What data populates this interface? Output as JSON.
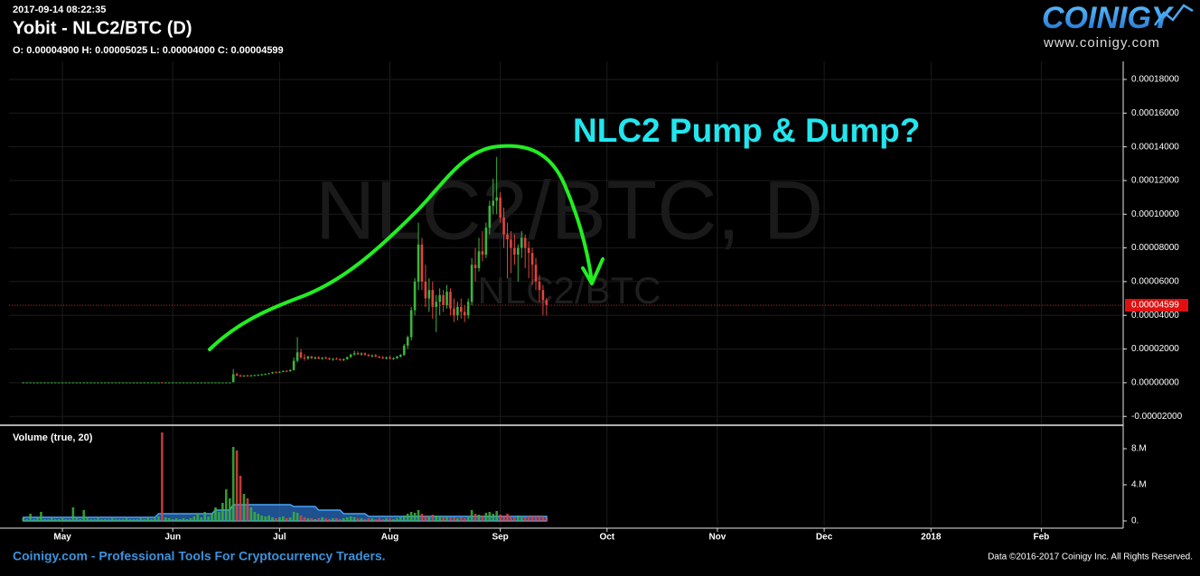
{
  "header": {
    "timestamp": "2017-09-14 08:22:35",
    "title": "Yobit - NLC2/BTC (D)",
    "ohlc": "O: 0.00004900 H: 0.00005025 L: 0.00004000 C: 0.00004599"
  },
  "logo": {
    "name": "COINIGY",
    "url": "www.coinigy.com"
  },
  "footer": {
    "tagline": "Coinigy.com - Professional Tools For Cryptocurrency Traders.",
    "copyright": "Data ©2016-2017 Coinigy Inc. All Rights Reserved."
  },
  "chart_data": [
    {
      "type": "candlestick",
      "watermark": "NLC2/BTC, D",
      "watermark_sub": "NLC2/BTC",
      "annotation": "NLC2 Pump & Dump?",
      "up_color": "#3cb43c",
      "down_color": "#e0443e",
      "grid": true,
      "xlim": [
        106,
        419
      ],
      "ylim": [
        -2.47e-05,
        0.0001907
      ],
      "yticks": [
        {
          "value": -2e-05,
          "label": "-0.00002000"
        },
        {
          "value": 0,
          "label": "0.00000000"
        },
        {
          "value": 2e-05,
          "label": "0.00002000"
        },
        {
          "value": 4e-05,
          "label": "0.00004000"
        },
        {
          "value": 6e-05,
          "label": "0.00006000"
        },
        {
          "value": 8e-05,
          "label": "0.00008000"
        },
        {
          "value": 0.0001,
          "label": "0.00010000"
        },
        {
          "value": 0.00012,
          "label": "0.00012000"
        },
        {
          "value": 0.00014,
          "label": "0.00014000"
        },
        {
          "value": 0.00016,
          "label": "0.00016000"
        },
        {
          "value": 0.00018,
          "label": "0.00018000"
        }
      ],
      "last_price": {
        "value": 4.599e-05,
        "label": "0.00004599"
      },
      "x": [
        110,
        111,
        112,
        113,
        114,
        115,
        116,
        117,
        118,
        119,
        120,
        121,
        122,
        123,
        124,
        125,
        126,
        127,
        128,
        129,
        130,
        131,
        132,
        133,
        134,
        135,
        136,
        137,
        138,
        139,
        140,
        141,
        142,
        143,
        144,
        145,
        146,
        147,
        148,
        149,
        150,
        151,
        152,
        153,
        154,
        155,
        156,
        157,
        158,
        159,
        160,
        161,
        162,
        163,
        164,
        165,
        166,
        167,
        168,
        169,
        170,
        171,
        172,
        173,
        174,
        175,
        176,
        177,
        178,
        179,
        180,
        181,
        182,
        183,
        184,
        185,
        186,
        187,
        188,
        189,
        190,
        191,
        192,
        193,
        194,
        195,
        196,
        197,
        198,
        199,
        200,
        201,
        202,
        203,
        204,
        205,
        206,
        207,
        208,
        209,
        210,
        211,
        212,
        213,
        214,
        215,
        216,
        217,
        218,
        219,
        220,
        221,
        222,
        223,
        224,
        225,
        226,
        227,
        228,
        229,
        230,
        231,
        232,
        233,
        234,
        235,
        236,
        237,
        238,
        239,
        240,
        241,
        242,
        243,
        244,
        245,
        246,
        247,
        248,
        249,
        250,
        251,
        252,
        253,
        254,
        255,
        256,
        257
      ],
      "open": [
        2e-07,
        2e-07,
        2e-07,
        2e-07,
        2e-07,
        2e-07,
        2e-07,
        2e-07,
        2e-07,
        2e-07,
        2e-07,
        2e-07,
        2e-07,
        2e-07,
        2e-07,
        2e-07,
        2e-07,
        2e-07,
        2e-07,
        2e-07,
        2e-07,
        2e-07,
        2e-07,
        2e-07,
        2e-07,
        2e-07,
        2e-07,
        2e-07,
        2e-07,
        2e-07,
        2e-07,
        2e-07,
        2e-07,
        2e-07,
        2e-07,
        2e-07,
        2e-07,
        2e-07,
        2e-07,
        2.5e-07,
        2e-07,
        2e-07,
        2e-07,
        2e-07,
        2e-07,
        2e-07,
        2e-07,
        2e-07,
        2e-07,
        2e-07,
        2e-07,
        2e-07,
        2e-07,
        2e-07,
        2e-07,
        2e-07,
        2e-07,
        2e-07,
        2e-07,
        3e-07,
        5e-06,
        4.2e-06,
        4e-06,
        4.2e-06,
        4e-06,
        4.3e-06,
        4.5e-06,
        4.6e-06,
        5e-06,
        5.2e-06,
        5.6e-06,
        6.2e-06,
        6e-06,
        6.5e-06,
        7e-06,
        6.9e-06,
        7.5e-06,
        1.3e-05,
        1.8e-05,
        1.5e-05,
        1.45e-05,
        1.55e-05,
        1.46e-05,
        1.5e-05,
        1.42e-05,
        1.48e-05,
        1.44e-05,
        1.38e-05,
        1.42e-05,
        1.39e-05,
        1.35e-05,
        1.4e-05,
        1.52e-05,
        1.68e-05,
        1.75e-05,
        1.68e-05,
        1.74e-05,
        1.64e-05,
        1.58e-05,
        1.62e-05,
        1.54e-05,
        1.5e-05,
        1.44e-05,
        1.5e-05,
        1.42e-05,
        1.46e-05,
        1.55e-05,
        1.65e-05,
        2.2e-05,
        2.7e-05,
        4.3e-05,
        6e-05,
        8.2e-05,
        6e-05,
        5e-05,
        5.5e-05,
        4.5e-05,
        4.8e-05,
        5.2e-05,
        4.6e-05,
        5.4e-05,
        4.4e-05,
        4e-05,
        4.5e-05,
        4.2e-05,
        4e-05,
        4.8e-05,
        7e-05,
        6.8e-05,
        7.8e-05,
        7.6e-05,
        9.2e-05,
        0.000105,
        0.000108,
        0.00011,
        9.8e-05,
        8.8e-05,
        8.5e-05,
        8e-05,
        7.6e-05,
        8e-05,
        8.6e-05,
        8e-05,
        7.7e-05,
        7e-05,
        6e-05,
        5.5e-05,
        4.9e-05
      ],
      "high": [
        2e-07,
        2e-07,
        2e-07,
        2e-07,
        2e-07,
        2e-07,
        2e-07,
        2e-07,
        2e-07,
        2e-07,
        2e-07,
        2e-07,
        2e-07,
        2e-07,
        2e-07,
        2e-07,
        2e-07,
        2e-07,
        2e-07,
        2e-07,
        2e-07,
        2e-07,
        2e-07,
        2e-07,
        2e-07,
        2e-07,
        2e-07,
        2e-07,
        2e-07,
        2e-07,
        2e-07,
        2e-07,
        2e-07,
        2e-07,
        2e-07,
        2e-07,
        2e-07,
        2e-07,
        2e-07,
        3e-07,
        2e-07,
        2e-07,
        2e-07,
        2e-07,
        2e-07,
        2e-07,
        2e-07,
        2e-07,
        2e-07,
        2e-07,
        2e-07,
        2e-07,
        2e-07,
        2e-07,
        2e-07,
        2e-07,
        2e-07,
        2e-07,
        2e-07,
        8e-06,
        6e-06,
        5e-06,
        4.5e-06,
        4.8e-06,
        4.6e-06,
        4.8e-06,
        5e-06,
        5.2e-06,
        5.5e-06,
        5.8e-06,
        6.5e-06,
        6.8e-06,
        6.8e-06,
        7.2e-06,
        7.5e-06,
        8e-06,
        1.5e-05,
        2.7e-05,
        2e-05,
        1.7e-05,
        1.6e-05,
        1.6e-05,
        1.55e-05,
        1.58e-05,
        1.52e-05,
        1.56e-05,
        1.5e-05,
        1.46e-05,
        1.5e-05,
        1.45e-05,
        1.44e-05,
        1.55e-05,
        1.7e-05,
        1.9e-05,
        1.85e-05,
        1.8e-05,
        1.8e-05,
        1.72e-05,
        1.68e-05,
        1.7e-05,
        1.6e-05,
        1.58e-05,
        1.55e-05,
        1.6e-05,
        1.5e-05,
        1.6e-05,
        1.7e-05,
        2.3e-05,
        2.8e-05,
        4.5e-05,
        6.2e-05,
        9.5e-05,
        8.6e-05,
        7e-05,
        6.2e-05,
        6e-05,
        5.2e-05,
        5.6e-05,
        5.5e-05,
        5.8e-05,
        5.6e-05,
        5e-05,
        4.8e-05,
        5e-05,
        4.6e-05,
        5e-05,
        7.4e-05,
        8e-05,
        8.6e-05,
        9e-05,
        9.5e-05,
        0.000108,
        0.000121,
        0.000134,
        0.000113,
        0.000104,
        9.5e-05,
        9e-05,
        8.8e-05,
        8.2e-05,
        9e-05,
        8.8e-05,
        8.4e-05,
        8e-05,
        7.4e-05,
        6.4e-05,
        5.8e-05,
        5.025e-05
      ],
      "low": [
        2e-07,
        2e-07,
        2e-07,
        2e-07,
        2e-07,
        2e-07,
        2e-07,
        2e-07,
        2e-07,
        2e-07,
        2e-07,
        2e-07,
        2e-07,
        2e-07,
        2e-07,
        2e-07,
        2e-07,
        2e-07,
        2e-07,
        2e-07,
        2e-07,
        2e-07,
        2e-07,
        2e-07,
        2e-07,
        2e-07,
        2e-07,
        2e-07,
        2e-07,
        2e-07,
        2e-07,
        2e-07,
        2e-07,
        2e-07,
        2e-07,
        2e-07,
        2e-07,
        2e-07,
        2e-07,
        2e-07,
        2e-07,
        2e-07,
        2e-07,
        2e-07,
        2e-07,
        2e-07,
        2e-07,
        2e-07,
        2e-07,
        2e-07,
        2e-07,
        2e-07,
        2e-07,
        2e-07,
        2e-07,
        2e-07,
        2e-07,
        2e-07,
        2e-07,
        3e-07,
        4e-06,
        3.5e-06,
        3.5e-06,
        3.8e-06,
        3.7e-06,
        4e-06,
        4.2e-06,
        4.3e-06,
        4.6e-06,
        5e-06,
        5.3e-06,
        5.8e-06,
        5.8e-06,
        6.2e-06,
        6.6e-06,
        6.5e-06,
        7.2e-06,
        1.2e-05,
        1.4e-05,
        1.3e-05,
        1.35e-05,
        1.4e-05,
        1.38e-05,
        1.4e-05,
        1.36e-05,
        1.4e-05,
        1.35e-05,
        1.3e-05,
        1.36e-05,
        1.3e-05,
        1.28e-05,
        1.36e-05,
        1.48e-05,
        1.6e-05,
        1.65e-05,
        1.6e-05,
        1.62e-05,
        1.55e-05,
        1.5e-05,
        1.52e-05,
        1.45e-05,
        1.42e-05,
        1.38e-05,
        1.4e-05,
        1.35e-05,
        1.4e-05,
        1.5e-05,
        1.6e-05,
        2e-05,
        2.5e-05,
        4e-05,
        5.5e-05,
        5.5e-05,
        4.5e-05,
        4.2e-05,
        3.8e-05,
        3e-05,
        4e-05,
        4.2e-05,
        4.4e-05,
        4e-05,
        3.6e-05,
        3.7e-05,
        3.8e-05,
        3.6e-05,
        3.8e-05,
        4.6e-05,
        6e-05,
        6.6e-05,
        7.2e-05,
        7.4e-05,
        8.8e-05,
        0.0001,
        0.0001,
        9.5e-05,
        8e-05,
        6.2e-05,
        6.5e-05,
        7e-05,
        6e-05,
        7.4e-05,
        6.8e-05,
        6.2e-05,
        5.8e-05,
        5.5e-05,
        4.8e-05,
        4e-05,
        4e-05
      ],
      "close": [
        2e-07,
        2e-07,
        2e-07,
        2e-07,
        2e-07,
        2e-07,
        2e-07,
        2e-07,
        2e-07,
        2e-07,
        2e-07,
        2e-07,
        2e-07,
        2e-07,
        2e-07,
        2e-07,
        2e-07,
        2e-07,
        2e-07,
        2e-07,
        2e-07,
        2e-07,
        2e-07,
        2e-07,
        2e-07,
        2e-07,
        2e-07,
        2e-07,
        2e-07,
        2e-07,
        2e-07,
        2e-07,
        2e-07,
        2e-07,
        2e-07,
        2e-07,
        2e-07,
        2e-07,
        2e-07,
        2e-07,
        2e-07,
        2e-07,
        2e-07,
        2e-07,
        2e-07,
        2e-07,
        2e-07,
        2e-07,
        2e-07,
        2e-07,
        2e-07,
        2e-07,
        2e-07,
        2e-07,
        2e-07,
        2e-07,
        2e-07,
        2e-07,
        2e-07,
        5e-06,
        4.2e-06,
        4e-06,
        4.2e-06,
        4e-06,
        4.3e-06,
        4.5e-06,
        4.6e-06,
        5e-06,
        5.2e-06,
        5.6e-06,
        6.2e-06,
        6e-06,
        6.5e-06,
        7e-06,
        6.9e-06,
        7.5e-06,
        1.3e-05,
        1.8e-05,
        1.5e-05,
        1.45e-05,
        1.55e-05,
        1.46e-05,
        1.5e-05,
        1.42e-05,
        1.48e-05,
        1.44e-05,
        1.38e-05,
        1.42e-05,
        1.39e-05,
        1.35e-05,
        1.4e-05,
        1.52e-05,
        1.68e-05,
        1.75e-05,
        1.68e-05,
        1.74e-05,
        1.64e-05,
        1.58e-05,
        1.62e-05,
        1.54e-05,
        1.5e-05,
        1.44e-05,
        1.5e-05,
        1.42e-05,
        1.46e-05,
        1.55e-05,
        1.65e-05,
        2.2e-05,
        2.7e-05,
        4.3e-05,
        6e-05,
        8.2e-05,
        6e-05,
        5e-05,
        5.5e-05,
        4.5e-05,
        4.8e-05,
        5.2e-05,
        4.6e-05,
        5.4e-05,
        4.4e-05,
        4e-05,
        4.5e-05,
        4.2e-05,
        4e-05,
        4.8e-05,
        7e-05,
        6.8e-05,
        7.8e-05,
        7.6e-05,
        9.2e-05,
        0.000105,
        0.000108,
        0.00011,
        9.8e-05,
        8.8e-05,
        8.5e-05,
        8e-05,
        7.6e-05,
        8e-05,
        8.6e-05,
        8e-05,
        7.7e-05,
        7e-05,
        6e-05,
        5.5e-05,
        4.9e-05,
        4.599e-05
      ]
    },
    {
      "type": "bar",
      "title": "Volume (true, 20)",
      "ma_color": "#2a6cc0",
      "ylim": [
        -500000.0,
        10500000.0
      ],
      "yticks": [
        {
          "value": 0,
          "label": "0."
        },
        {
          "value": 4000000.0,
          "label": "4.M"
        },
        {
          "value": 8000000.0,
          "label": "8.M"
        }
      ],
      "xticks": [
        {
          "value": 121,
          "label": "May"
        },
        {
          "value": 152,
          "label": "Jun"
        },
        {
          "value": 182,
          "label": "Jul"
        },
        {
          "value": 213,
          "label": "Aug"
        },
        {
          "value": 244,
          "label": "Sep"
        },
        {
          "value": 274,
          "label": "Oct"
        },
        {
          "value": 305,
          "label": "Nov"
        },
        {
          "value": 335,
          "label": "Dec"
        },
        {
          "value": 365,
          "label": "2018"
        },
        {
          "value": 396,
          "label": "Feb"
        }
      ],
      "values": [
        300000.0,
        200000.0,
        800000.0,
        200000.0,
        300000.0,
        1000000.0,
        200000.0,
        200000.0,
        300000.0,
        200000.0,
        200000.0,
        400000.0,
        200000.0,
        200000.0,
        1500000.0,
        300000.0,
        200000.0,
        1200000.0,
        300000.0,
        200000.0,
        200000.0,
        300000.0,
        200000.0,
        200000.0,
        200000.0,
        300000.0,
        200000.0,
        200000.0,
        200000.0,
        300000.0,
        200000.0,
        200000.0,
        200000.0,
        300000.0,
        200000.0,
        400000.0,
        200000.0,
        300000.0,
        500000.0,
        9800000.0,
        400000.0,
        300000.0,
        200000.0,
        300000.0,
        200000.0,
        300000.0,
        200000.0,
        300000.0,
        500000.0,
        800000.0,
        400000.0,
        1000000.0,
        500000.0,
        800000.0,
        1500000.0,
        1000000.0,
        2000000.0,
        3500000.0,
        2500000.0,
        8200000.0,
        7800000.0,
        5000000.0,
        3000000.0,
        2500000.0,
        1500000.0,
        1000000.0,
        800000.0,
        600000.0,
        500000.0,
        600000.0,
        400000.0,
        300000.0,
        400000.0,
        500000.0,
        300000.0,
        400000.0,
        1000000.0,
        900000.0,
        600000.0,
        400000.0,
        300000.0,
        300000.0,
        200000.0,
        300000.0,
        400000.0,
        300000.0,
        200000.0,
        300000.0,
        300000.0,
        200000.0,
        300000.0,
        400000.0,
        500000.0,
        400000.0,
        300000.0,
        300000.0,
        200000.0,
        300000.0,
        300000.0,
        200000.0,
        300000.0,
        200000.0,
        300000.0,
        300000.0,
        200000.0,
        300000.0,
        400000.0,
        600000.0,
        800000.0,
        1000000.0,
        900000.0,
        1200000.0,
        800000.0,
        600000.0,
        500000.0,
        700000.0,
        600000.0,
        500000.0,
        400000.0,
        500000.0,
        400000.0,
        400000.0,
        300000.0,
        400000.0,
        300000.0,
        500000.0,
        1200000.0,
        800000.0,
        700000.0,
        600000.0,
        900000.0,
        1000000.0,
        800000.0,
        1100000.0,
        700000.0,
        600000.0,
        800000.0,
        500000.0,
        400000.0,
        600000.0,
        500000.0,
        400000.0,
        500000.0,
        600000.0,
        500000.0,
        600000.0,
        500000.0,
        400000.0
      ],
      "ma_values": [
        400000.0,
        400000.0,
        400000.0,
        400000.0,
        400000.0,
        400000.0,
        400000.0,
        400000.0,
        400000.0,
        400000.0,
        400000.0,
        400000.0,
        400000.0,
        400000.0,
        400000.0,
        400000.0,
        400000.0,
        400000.0,
        400000.0,
        400000.0,
        400000.0,
        400000.0,
        400000.0,
        400000.0,
        400000.0,
        400000.0,
        400000.0,
        400000.0,
        400000.0,
        400000.0,
        400000.0,
        400000.0,
        400000.0,
        400000.0,
        400000.0,
        400000.0,
        400000.0,
        400000.0,
        800000.0,
        800000.0,
        800000.0,
        800000.0,
        800000.0,
        800000.0,
        800000.0,
        800000.0,
        800000.0,
        800000.0,
        800000.0,
        800000.0,
        800000.0,
        800000.0,
        800000.0,
        800000.0,
        1200000.0,
        1200000.0,
        1200000.0,
        1200000.0,
        1200000.0,
        1800000.0,
        1800000.0,
        1800000.0,
        1800000.0,
        1800000.0,
        1800000.0,
        1800000.0,
        1800000.0,
        1800000.0,
        1800000.0,
        1800000.0,
        1800000.0,
        1800000.0,
        1800000.0,
        1800000.0,
        1800000.0,
        1800000.0,
        1600000.0,
        1600000.0,
        1600000.0,
        1600000.0,
        1600000.0,
        1600000.0,
        1600000.0,
        1200000.0,
        1200000.0,
        1200000.0,
        1200000.0,
        1200000.0,
        1200000.0,
        1200000.0,
        800000.0,
        800000.0,
        800000.0,
        800000.0,
        800000.0,
        800000.0,
        800000.0,
        500000.0,
        500000.0,
        500000.0,
        500000.0,
        500000.0,
        500000.0,
        500000.0,
        500000.0,
        500000.0,
        500000.0,
        500000.0,
        500000.0,
        500000.0,
        500000.0,
        500000.0,
        500000.0,
        500000.0,
        500000.0,
        500000.0,
        500000.0,
        500000.0,
        500000.0,
        500000.0,
        500000.0,
        500000.0,
        500000.0,
        500000.0,
        500000.0,
        500000.0,
        500000.0,
        500000.0,
        500000.0,
        500000.0,
        500000.0,
        500000.0,
        500000.0,
        500000.0,
        500000.0,
        500000.0,
        500000.0,
        500000.0,
        500000.0,
        500000.0,
        500000.0,
        500000.0,
        500000.0,
        500000.0,
        500000.0,
        500000.0,
        500000.0,
        500000.0
      ]
    }
  ]
}
